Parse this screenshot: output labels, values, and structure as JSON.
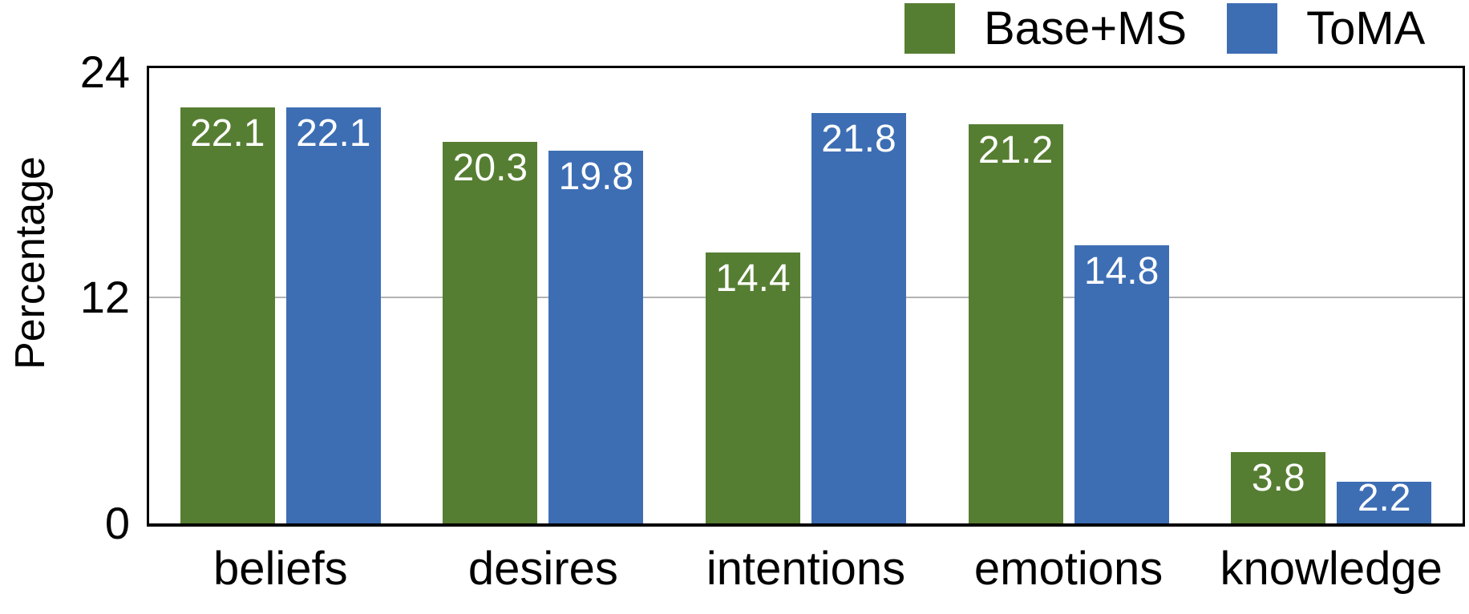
{
  "chart_data": {
    "type": "bar",
    "title": "",
    "xlabel": "",
    "ylabel": "Percentage",
    "categories": [
      "beliefs",
      "desires",
      "intentions",
      "emotions",
      "knowledge"
    ],
    "series": [
      {
        "name": "Base+MS",
        "color": "#567E32",
        "values": [
          22.1,
          20.3,
          14.4,
          21.2,
          3.8
        ]
      },
      {
        "name": "ToMA",
        "color": "#3D6EB4",
        "values": [
          22.1,
          19.8,
          21.8,
          14.8,
          2.2
        ]
      }
    ],
    "yticks": [
      0,
      12,
      24
    ],
    "ylim": [
      0,
      24.2
    ],
    "gridlines": [
      12
    ],
    "grid_color": "#b3b3b3",
    "axis_color": "#000000",
    "bar_label_color": "#ffffff",
    "legend_position": "top-right",
    "bar_labels_shown": true
  }
}
